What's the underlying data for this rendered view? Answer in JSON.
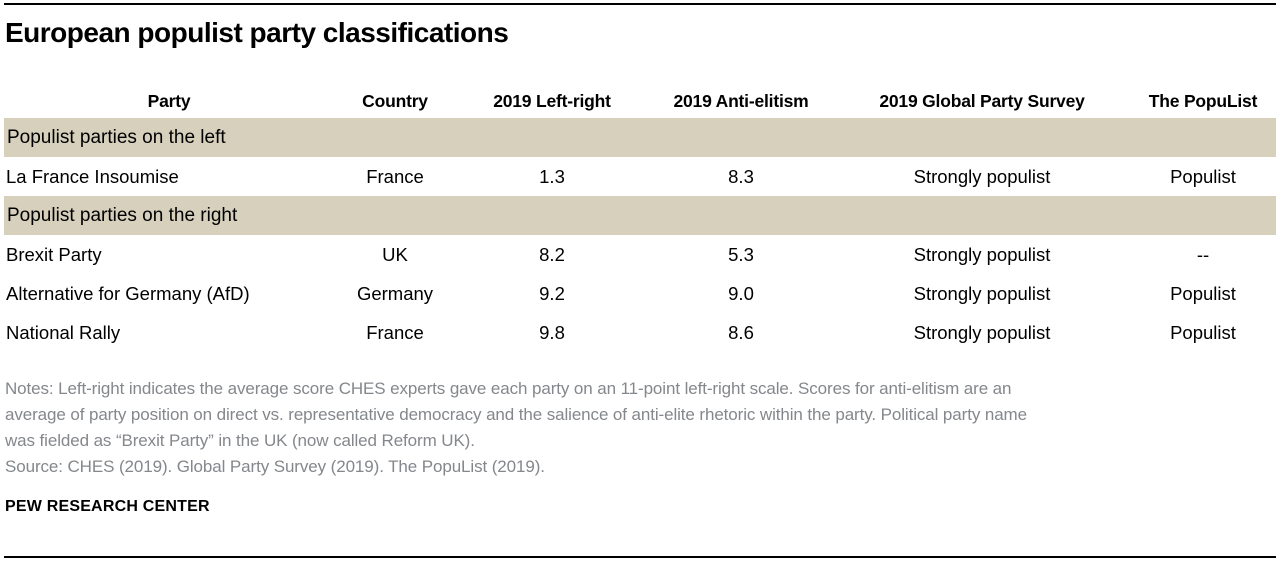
{
  "title": "European populist party classifications",
  "chart_data": {
    "type": "table",
    "title": "European populist party classifications",
    "columns": [
      "Party",
      "Country",
      "2019 Left-right",
      "2019 Anti-elitism",
      "2019 Global Party Survey",
      "The PopuList"
    ],
    "sections": [
      {
        "label": "Populist parties on the left",
        "rows": [
          {
            "party": "La France Insoumise",
            "country": "France",
            "left_right": "1.3",
            "anti_elitism": "8.3",
            "global_party_survey": "Strongly populist",
            "populist": "Populist"
          }
        ]
      },
      {
        "label": "Populist parties on the right",
        "rows": [
          {
            "party": "Brexit Party",
            "country": "UK",
            "left_right": "8.2",
            "anti_elitism": "5.3",
            "global_party_survey": "Strongly populist",
            "populist": "--"
          },
          {
            "party": "Alternative for Germany (AfD)",
            "country": "Germany",
            "left_right": "9.2",
            "anti_elitism": "9.0",
            "global_party_survey": "Strongly populist",
            "populist": "Populist"
          },
          {
            "party": "National Rally",
            "country": "France",
            "left_right": "9.8",
            "anti_elitism": "8.6",
            "global_party_survey": "Strongly populist",
            "populist": "Populist"
          }
        ]
      }
    ]
  },
  "notes": {
    "lines": [
      "Notes: Left-right indicates the average score CHES experts gave each party on an 11-point left-right scale. Scores for anti-elitism are an",
      "average of party position on direct vs. representative democracy and the salience of anti-elite rhetoric within the party. Political party name",
      "was fielded as “Brexit Party” in the UK (now called Reform UK)."
    ],
    "source": "Source: CHES (2019). Global Party Survey (2019). The PopuList (2019)."
  },
  "footer": {
    "brand": "PEW RESEARCH CENTER"
  },
  "colors": {
    "band": "#d6d0bd",
    "notes_text": "#84878b",
    "rule": "#000000"
  }
}
